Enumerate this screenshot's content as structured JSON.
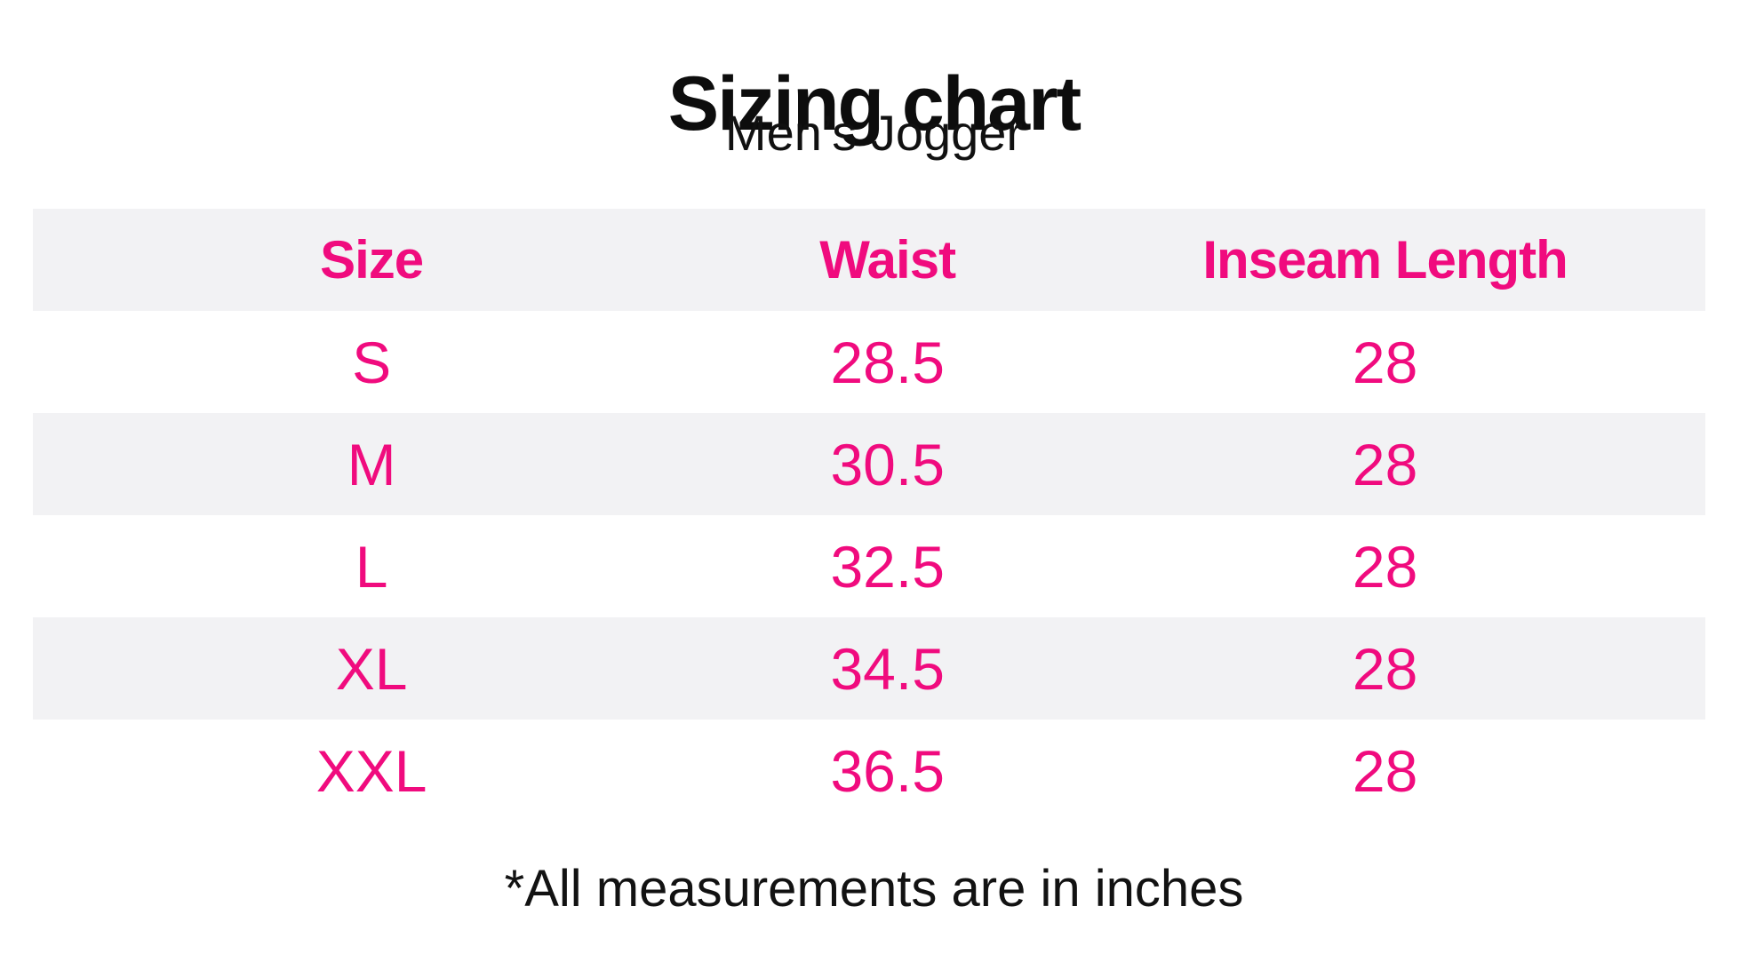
{
  "title": "Sizing chart",
  "subtitle": "Men’s Jogger",
  "footnote": "*All measurements are in inches",
  "colors": {
    "accent_pink": "#F00B7E",
    "row_alt_bg": "#F2F2F4",
    "text_black": "#0d0d0d",
    "page_bg": "#ffffff"
  },
  "table": {
    "headers": [
      "Size",
      "Waist",
      "Inseam Length"
    ],
    "rows": [
      {
        "cells": [
          "S",
          "28.5",
          "28"
        ]
      },
      {
        "cells": [
          "M",
          "30.5",
          "28"
        ]
      },
      {
        "cells": [
          "L",
          "32.5",
          "28"
        ]
      },
      {
        "cells": [
          "XL",
          "34.5",
          "28"
        ]
      },
      {
        "cells": [
          "XXL",
          "36.5",
          "28"
        ]
      }
    ]
  },
  "chart_data": {
    "type": "table",
    "title": "Sizing chart",
    "subtitle": "Men's Jogger",
    "columns": [
      "Size",
      "Waist",
      "Inseam Length"
    ],
    "rows": [
      [
        "S",
        28.5,
        28
      ],
      [
        "M",
        30.5,
        28
      ],
      [
        "L",
        32.5,
        28
      ],
      [
        "XL",
        34.5,
        28
      ],
      [
        "XXL",
        36.5,
        28
      ]
    ],
    "units": "inches",
    "footnote": "*All measurements are in inches",
    "layout": {
      "header_bg": "#F2F2F4",
      "alternating_rows": true,
      "text_color": "#F00B7E",
      "grid": false
    }
  }
}
